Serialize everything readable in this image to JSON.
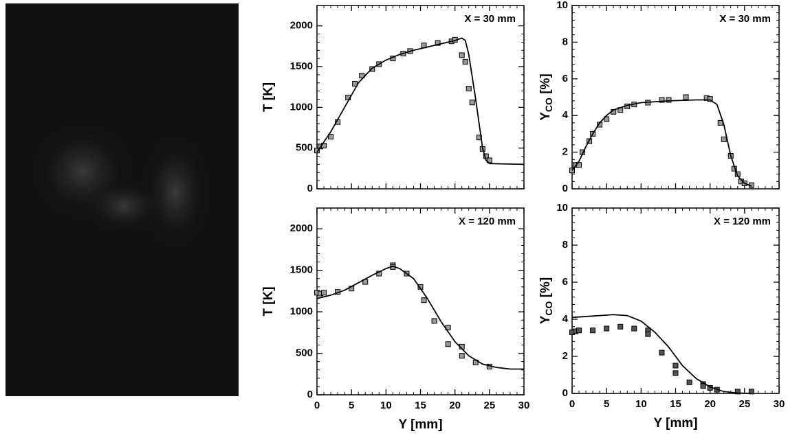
{
  "chart_data": [
    {
      "type": "scatter",
      "annotation": "X = 30 mm",
      "ylabel": [
        "T [K]"
      ],
      "xlim": [
        0,
        30
      ],
      "xticks": [
        0,
        5,
        10,
        15,
        20,
        25,
        30
      ],
      "ylim": [
        0,
        2250
      ],
      "yticks": [
        0,
        500,
        1000,
        1500,
        2000
      ],
      "series": [
        {
          "type": "scatter",
          "color": "#9a9a9a",
          "x": [
            0,
            0.5,
            1,
            2,
            3,
            4.5,
            5.5,
            6.5,
            8,
            9,
            11,
            12.5,
            13.5,
            15.5,
            17.5,
            19.5,
            20,
            21,
            21.5,
            22,
            22.5,
            23.5,
            24,
            24.5,
            25
          ],
          "values": [
            470,
            520,
            530,
            640,
            820,
            1120,
            1290,
            1390,
            1470,
            1530,
            1600,
            1660,
            1690,
            1760,
            1790,
            1810,
            1830,
            1640,
            1560,
            1230,
            1060,
            630,
            490,
            400,
            350
          ]
        },
        {
          "type": "line",
          "color": "#000000",
          "x": [
            0,
            2,
            4,
            6,
            8,
            10,
            12,
            14,
            16,
            18,
            20,
            21,
            21.5,
            22,
            23,
            24,
            24.5,
            25,
            30
          ],
          "values": [
            450,
            700,
            1000,
            1300,
            1480,
            1580,
            1650,
            1700,
            1740,
            1780,
            1820,
            1850,
            1820,
            1650,
            1100,
            500,
            350,
            310,
            300
          ]
        }
      ]
    },
    {
      "type": "scatter",
      "annotation": "X = 30 mm",
      "ylabel": [
        "Y",
        "CO",
        " [%]"
      ],
      "xlim": [
        0,
        30
      ],
      "xticks": [
        0,
        5,
        10,
        15,
        20,
        25,
        30
      ],
      "ylim": [
        0,
        10
      ],
      "yticks": [
        0,
        2,
        4,
        6,
        8,
        10
      ],
      "series": [
        {
          "type": "scatter",
          "color": "#9a9a9a",
          "x": [
            0,
            0.5,
            1,
            1.5,
            2.5,
            3,
            4,
            5,
            6,
            7,
            8,
            9,
            11,
            13,
            14,
            16.5,
            19.5,
            20,
            21.5,
            22,
            23,
            23.5,
            24,
            24.5,
            25,
            26
          ],
          "values": [
            1.0,
            1.3,
            1.3,
            2.0,
            2.6,
            3.0,
            3.5,
            3.8,
            4.2,
            4.3,
            4.5,
            4.6,
            4.7,
            4.85,
            4.85,
            5.0,
            4.95,
            4.9,
            3.6,
            2.7,
            1.8,
            1.1,
            0.8,
            0.4,
            0.3,
            0.2
          ]
        },
        {
          "type": "line",
          "color": "#000000",
          "x": [
            0,
            1,
            2,
            3,
            4,
            5,
            6,
            8,
            10,
            14,
            18,
            20,
            21,
            22,
            23,
            24,
            25,
            26
          ],
          "values": [
            1.0,
            1.5,
            2.3,
            3.0,
            3.6,
            4.0,
            4.3,
            4.55,
            4.7,
            4.8,
            4.85,
            4.85,
            4.6,
            3.5,
            1.8,
            0.7,
            0.3,
            0.15
          ]
        }
      ]
    },
    {
      "type": "scatter",
      "annotation": "X = 120 mm",
      "ylabel": [
        "T [K]"
      ],
      "xlabel": "Y [mm]",
      "xlim": [
        0,
        30
      ],
      "xticks": [
        0,
        5,
        10,
        15,
        20,
        25,
        30
      ],
      "ylim": [
        0,
        2250
      ],
      "yticks": [
        0,
        500,
        1000,
        1500,
        2000
      ],
      "series": [
        {
          "type": "scatter",
          "color": "#9a9a9a",
          "x": [
            0,
            0.5,
            1,
            3,
            5,
            7,
            9,
            11,
            11,
            13,
            15,
            15.5,
            17,
            19,
            19,
            21,
            21,
            23,
            25
          ],
          "values": [
            1230,
            1220,
            1230,
            1240,
            1280,
            1360,
            1460,
            1560,
            1540,
            1460,
            1300,
            1140,
            890,
            810,
            610,
            580,
            470,
            390,
            340
          ]
        },
        {
          "type": "line",
          "color": "#000000",
          "x": [
            0,
            2,
            4,
            6,
            8,
            10,
            11,
            12,
            14,
            16,
            18,
            20,
            22,
            24,
            26,
            28,
            30
          ],
          "values": [
            1160,
            1200,
            1260,
            1350,
            1440,
            1520,
            1550,
            1520,
            1400,
            1160,
            880,
            640,
            470,
            370,
            330,
            310,
            310
          ]
        }
      ]
    },
    {
      "type": "scatter",
      "annotation": "X = 120 mm",
      "ylabel": [
        "Y",
        "CO",
        " [%]"
      ],
      "xlabel": "Y [mm]",
      "xlim": [
        0,
        30
      ],
      "xticks": [
        0,
        5,
        10,
        15,
        20,
        25,
        30
      ],
      "ylim": [
        0,
        10
      ],
      "yticks": [
        0,
        2,
        4,
        6,
        8,
        10
      ],
      "series": [
        {
          "type": "scatter",
          "color": "#555555",
          "x": [
            0,
            0.5,
            1,
            3,
            5,
            7,
            9,
            11,
            11,
            13,
            15,
            15,
            17,
            19,
            19,
            20,
            21,
            24,
            26
          ],
          "values": [
            3.3,
            3.35,
            3.4,
            3.4,
            3.5,
            3.6,
            3.5,
            3.4,
            3.2,
            2.2,
            1.5,
            1.1,
            0.6,
            0.5,
            0.4,
            0.3,
            0.2,
            0.1,
            0.1
          ]
        },
        {
          "type": "line",
          "color": "#000000",
          "x": [
            0,
            2,
            4,
            6,
            8,
            10,
            12,
            14,
            16,
            18,
            20,
            22,
            24,
            26
          ],
          "values": [
            4.1,
            4.15,
            4.2,
            4.25,
            4.2,
            3.9,
            3.3,
            2.5,
            1.5,
            0.8,
            0.35,
            0.1,
            0.02,
            0
          ]
        }
      ]
    }
  ]
}
